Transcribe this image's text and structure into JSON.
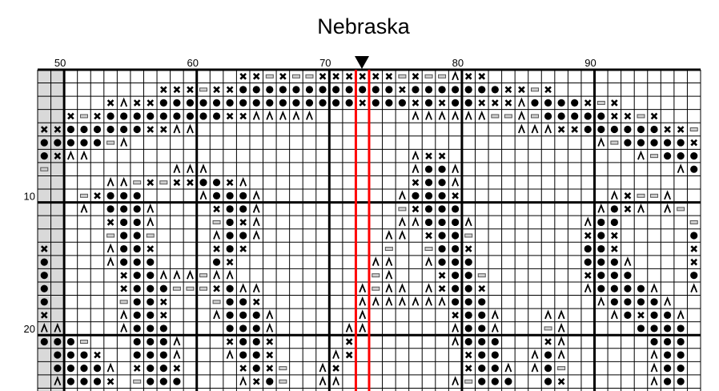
{
  "chart_data": {
    "type": "table",
    "title": "Nebraska",
    "column_labels": [
      "50",
      "60",
      "70",
      "80",
      "90"
    ],
    "row_labels": [
      "10",
      "20"
    ],
    "colors": {
      "grid": "#000000",
      "center_line": "#ff0000",
      "margin_fill": "#d9d9d9",
      "bar_fill": "#d0d0d0",
      "symbol": "#000000"
    },
    "rows": [
      "...............xx=x==xxxxxx=x==^xx................",
      ".........xxx=xxooooooooooooxoooooooxx=x...........",
      ".....x^xxoooooooooooooooxoooxoxooxxx^oooox=x.......",
      "..x=xoooooooooxx^^^^^.......^^^^^^==^=oooooxx=x...",
      "xxooooooxx^^........................^^^xxooooooxx=.",
      "ooooo=^...................................^=ooooox",
      "ox^^........................^xx..............^=ooo",
      "=.........^^^...............^oo^................^o",
      ".....^^=x=xxoox^............xoo^..................",
      "...=xooo....^ooo^..........^ooox...........^x==^..",
      "...^.ooo^....xoo^..........=xooo..........^ox^.^=.",
      ".....xoo^....=ox^..........^^ooo^........^oo.....=",
      ".....=oo=....^oo^.........^^.xoo=........xox.....o",
      "x....^oox....xox..........=..=oox........oox.....x",
      "o....^ooo....ox..........^^..^ooo........ooo^....x",
      "o.....xoo^^^=^^..........=^...xoo=.......xooo....o",
      "o.....xooo===xo^^.......^=^^.^xoox.......^oooo^..^",
      "o.....=oox...=oox.......^^^^^^^ooo........^oooo^..",
      "x.....^oox...^ooo^......^......xoo^...^^...^oxoo^.",
      "^^....^ooo....ooo^.....^^......^oo^...=^.....oooo.",
      "ooo=...ooo^...xoox.....x.......^ooo...x^......ooo.",
      ".ooox..ooo^...^oox....^x........xoo..^o^......^oo.",
      ".oooo^.xoox....xox=..^x.........xoo^.^o=......^oo.",
      ".^ooox.=ooo....^xo=..^^........^=ooo..ox......^oo."
    ]
  }
}
